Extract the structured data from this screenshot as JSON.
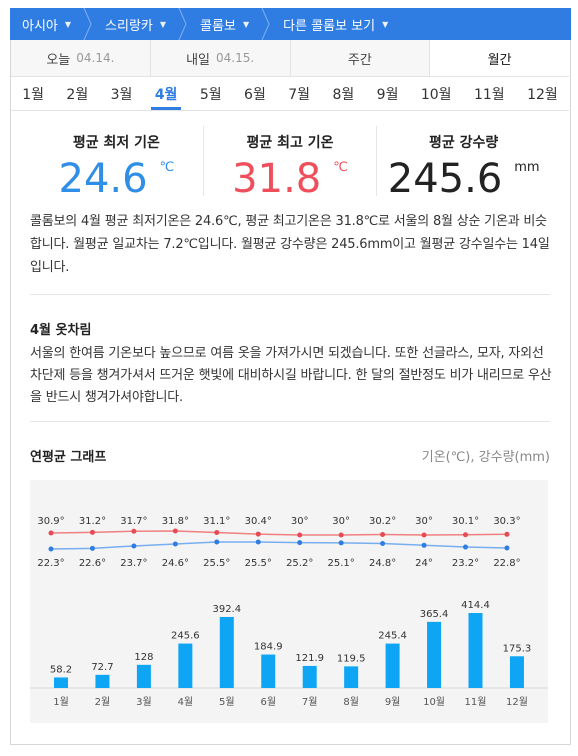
{
  "breadcrumb": [
    {
      "label": "아시아"
    },
    {
      "label": "스리랑카"
    },
    {
      "label": "콜롬보"
    },
    {
      "label": "다른 콜롬보 보기"
    }
  ],
  "period_tabs": [
    {
      "label": "오늘",
      "date": "04.14."
    },
    {
      "label": "내일",
      "date": "04.15."
    },
    {
      "label": "주간",
      "date": ""
    },
    {
      "label": "월간",
      "date": ""
    }
  ],
  "months": [
    "1월",
    "2월",
    "3월",
    "4월",
    "5월",
    "6월",
    "7월",
    "8월",
    "9월",
    "10월",
    "11월",
    "12월"
  ],
  "selected_month_index": 3,
  "stats": {
    "min": {
      "label": "평균 최저 기온",
      "value": "24.6",
      "unit": "℃"
    },
    "max": {
      "label": "평균 최고 기온",
      "value": "31.8",
      "unit": "℃"
    },
    "rain": {
      "label": "평균 강수량",
      "value": "245.6",
      "unit": "mm"
    }
  },
  "description": "콜롬보의 4월 평균 최저기온은 24.6℃, 평균 최고기온은 31.8℃로 서울의 8월 상순 기온과 비슷합니다. 월평균 일교차는 7.2℃입니다. 월평균 강수량은 245.6mm이고 월평균 강수일수는 14일입니다.",
  "clothing": {
    "title": "4월 옷차림",
    "text": "서울의 한여름 기온보다 높으므로 여름 옷을 가져가시면 되겠습니다. 또한 선글라스, 모자, 자외선차단제 등을 챙겨가셔서 뜨거운 햇빛에 대비하시길 바랍니다. 한 달의 절반정도 비가 내리므로 우산을 반드시 챙겨가셔야합니다."
  },
  "graph": {
    "title": "연평균 그래프",
    "unit_label": "기온(℃), 강수량(mm)"
  },
  "colors": {
    "accent": "#2f7ce3",
    "max_line": "#f08080",
    "min_line": "#78aef0",
    "max_dot": "#e84a55",
    "min_dot": "#2f7ce3",
    "bar": "#0ea5f5"
  },
  "chart_data": {
    "type": "bar+line",
    "categories": [
      "1월",
      "2월",
      "3월",
      "4월",
      "5월",
      "6월",
      "7월",
      "8월",
      "9월",
      "10월",
      "11월",
      "12월"
    ],
    "series": [
      {
        "name": "max_temp",
        "values": [
          30.9,
          31.2,
          31.7,
          31.8,
          31.1,
          30.4,
          30,
          30,
          30.2,
          30,
          30.1,
          30.3
        ],
        "labels": [
          "30.9°",
          "31.2°",
          "31.7°",
          "31.8°",
          "31.1°",
          "30.4°",
          "30°",
          "30°",
          "30.2°",
          "30°",
          "30.1°",
          "30.3°"
        ]
      },
      {
        "name": "min_temp",
        "values": [
          22.3,
          22.6,
          23.7,
          24.6,
          25.5,
          25.5,
          25.2,
          25.1,
          24.8,
          24,
          23.2,
          22.8
        ],
        "labels": [
          "22.3°",
          "22.6°",
          "23.7°",
          "24.6°",
          "25.5°",
          "25.5°",
          "25.2°",
          "25.1°",
          "24.8°",
          "24°",
          "23.2°",
          "22.8°"
        ]
      },
      {
        "name": "precip",
        "values": [
          58.2,
          72.7,
          128,
          245.6,
          392.4,
          184.9,
          121.9,
          119.5,
          245.4,
          365.4,
          414.4,
          175.3
        ],
        "labels": [
          "58.2",
          "72.7",
          "128",
          "245.6",
          "392.4",
          "184.9",
          "121.9",
          "119.5",
          "245.4",
          "365.4",
          "414.4",
          "175.3"
        ]
      }
    ]
  }
}
